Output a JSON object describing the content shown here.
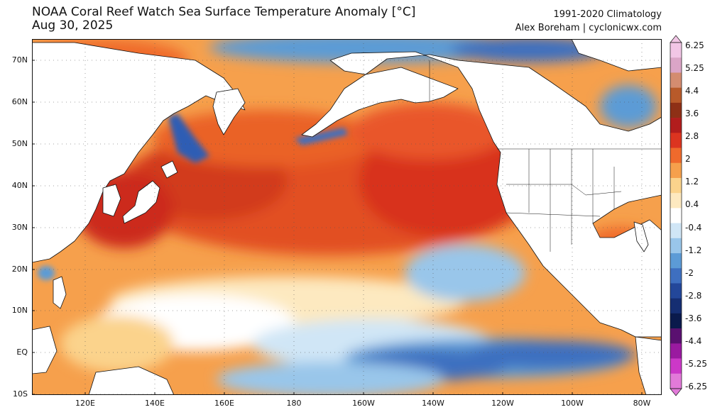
{
  "header": {
    "title_line1": "NOAA Coral Reef Watch Sea Surface Temperature Anomaly [°C]",
    "title_line2": "Aug 30, 2025",
    "climatology": "1991-2020 Climatology",
    "author": "Alex Boreham | cyclonicwx.com"
  },
  "map": {
    "lat_labels": [
      "70N",
      "60N",
      "50N",
      "40N",
      "30N",
      "20N",
      "10N",
      "EQ",
      "10S"
    ],
    "lon_labels": [
      "120E",
      "140E",
      "160E",
      "180",
      "160W",
      "140W",
      "120W",
      "100W",
      "80W"
    ]
  },
  "colorbar": {
    "labels": [
      "6.25",
      "5.25",
      "4.4",
      "3.6",
      "2.8",
      "2",
      "1.2",
      "0.4",
      "-0.4",
      "-1.2",
      "-2",
      "-2.8",
      "-3.6",
      "-4.4",
      "-5.25",
      "-6.25"
    ],
    "colors": [
      "#f2c6e6",
      "#dba5c7",
      "#d48c70",
      "#b85a2a",
      "#8e3016",
      "#b21d1d",
      "#dc3420",
      "#ef6a2c",
      "#f6a04c",
      "#fbd38c",
      "#fde9c0",
      "#ffffff",
      "#d0e6f6",
      "#99c6ea",
      "#5c9bd6",
      "#3e6fc0",
      "#23479a",
      "#152e72",
      "#0a1a4c",
      "#5a1070",
      "#9a1aa0",
      "#cc38c8",
      "#e27ad9"
    ]
  },
  "colors": {
    "land": "#ffffff",
    "warm_strong": "#d8321f",
    "warm": "#ef6f2e",
    "warm_light": "#f8a758",
    "neutral": "#fde2b0",
    "cool_light": "#bcdcf2",
    "cool": "#5a93d2",
    "cool_strong": "#2e5db4"
  }
}
